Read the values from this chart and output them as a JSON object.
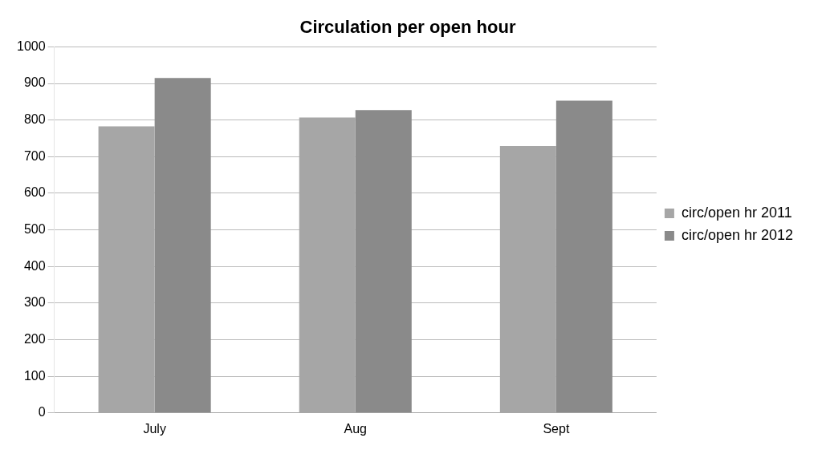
{
  "chart_data": {
    "type": "bar",
    "title": "Circulation per open hour",
    "categories": [
      "July",
      "Aug",
      "Sept"
    ],
    "series": [
      {
        "name": "circ/open hr 2011",
        "color": "#a6a6a6",
        "values": [
          783,
          807,
          729
        ]
      },
      {
        "name": "circ/open hr 2012",
        "color": "#8a8a8a",
        "values": [
          915,
          827,
          853
        ]
      }
    ],
    "ylim": [
      0,
      1000
    ],
    "yticks": [
      0,
      100,
      200,
      300,
      400,
      500,
      600,
      700,
      800,
      900,
      1000
    ],
    "grid": "y",
    "legend": "right"
  }
}
